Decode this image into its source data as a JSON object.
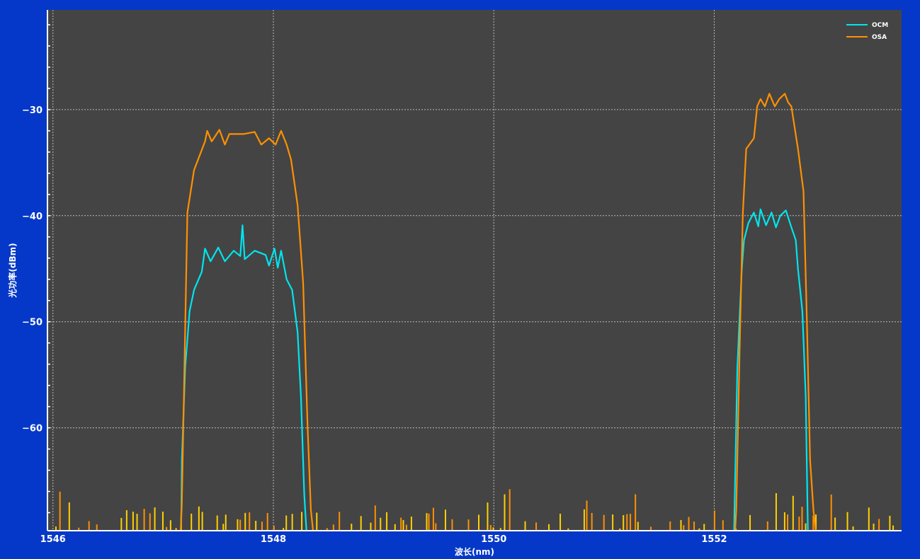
{
  "chart_data": {
    "type": "line",
    "title": "",
    "xlabel": "波长(nm)",
    "ylabel": "光功率(dBm)",
    "xlim": [
      1545.95,
      1553.7
    ],
    "ylim": [
      -69.7,
      -20.6
    ],
    "x_ticks": [
      1546,
      1548,
      1550,
      1552
    ],
    "x_tick_labels": [
      "1546",
      "1548",
      "1550",
      "1552"
    ],
    "y_ticks": [
      -30,
      -40,
      -50,
      -60
    ],
    "y_tick_labels": [
      "−30",
      "−40",
      "−50",
      "−60"
    ],
    "grid": true,
    "legend_position": "top-right",
    "colors": {
      "background": "#0538c8",
      "plot": "#444444",
      "OCM": "#00e5ee",
      "OSA": "#ff9000",
      "noise": "#ffd000"
    },
    "series": [
      {
        "name": "OCM",
        "points": [
          [
            1547.16,
            -70
          ],
          [
            1547.165,
            -67.7
          ],
          [
            1547.17,
            -63
          ],
          [
            1547.2,
            -54.3
          ],
          [
            1547.24,
            -49
          ],
          [
            1547.28,
            -47
          ],
          [
            1547.35,
            -45.3
          ],
          [
            1547.38,
            -43.1
          ],
          [
            1547.43,
            -44.3
          ],
          [
            1547.5,
            -43
          ],
          [
            1547.56,
            -44.3
          ],
          [
            1547.64,
            -43.3
          ],
          [
            1547.7,
            -43.8
          ],
          [
            1547.72,
            -40.9
          ],
          [
            1547.74,
            -44.1
          ],
          [
            1547.83,
            -43.3
          ],
          [
            1547.93,
            -43.7
          ],
          [
            1547.96,
            -44.7
          ],
          [
            1548.01,
            -43.1
          ],
          [
            1548.04,
            -44.9
          ],
          [
            1548.07,
            -43.3
          ],
          [
            1548.12,
            -46
          ],
          [
            1548.17,
            -47
          ],
          [
            1548.22,
            -51
          ],
          [
            1548.25,
            -57
          ],
          [
            1548.28,
            -66.3
          ],
          [
            1548.3,
            -70
          ]
        ]
      },
      {
        "name": "OSA",
        "points": [
          [
            1547.16,
            -70
          ],
          [
            1547.17,
            -67
          ],
          [
            1547.22,
            -39.7
          ],
          [
            1547.28,
            -35.7
          ],
          [
            1547.38,
            -33
          ],
          [
            1547.4,
            -32
          ],
          [
            1547.44,
            -33
          ],
          [
            1547.51,
            -31.9
          ],
          [
            1547.56,
            -33.3
          ],
          [
            1547.6,
            -32.3
          ],
          [
            1547.73,
            -32.3
          ],
          [
            1547.83,
            -32.1
          ],
          [
            1547.89,
            -33.3
          ],
          [
            1547.96,
            -32.7
          ],
          [
            1548.02,
            -33.3
          ],
          [
            1548.07,
            -32
          ],
          [
            1548.12,
            -33.3
          ],
          [
            1548.16,
            -34.7
          ],
          [
            1548.22,
            -39
          ],
          [
            1548.27,
            -46.3
          ],
          [
            1548.31,
            -59.7
          ],
          [
            1548.34,
            -67.7
          ],
          [
            1548.36,
            -70
          ]
        ]
      },
      {
        "name": "OCM",
        "points": [
          [
            1552.18,
            -70
          ],
          [
            1552.21,
            -54.3
          ],
          [
            1552.25,
            -45
          ],
          [
            1552.27,
            -42.3
          ],
          [
            1552.31,
            -40.7
          ],
          [
            1552.36,
            -39.7
          ],
          [
            1552.4,
            -41
          ],
          [
            1552.42,
            -39.4
          ],
          [
            1552.47,
            -40.9
          ],
          [
            1552.52,
            -39.7
          ],
          [
            1552.56,
            -41.1
          ],
          [
            1552.6,
            -40
          ],
          [
            1552.65,
            -39.5
          ],
          [
            1552.7,
            -41.1
          ],
          [
            1552.74,
            -42.3
          ],
          [
            1552.76,
            -45
          ],
          [
            1552.8,
            -49
          ],
          [
            1552.83,
            -57
          ],
          [
            1552.85,
            -70
          ]
        ]
      },
      {
        "name": "OSA",
        "points": [
          [
            1552.19,
            -70
          ],
          [
            1552.2,
            -67.7
          ],
          [
            1552.23,
            -53
          ],
          [
            1552.26,
            -39.7
          ],
          [
            1552.29,
            -33.7
          ],
          [
            1552.36,
            -32.7
          ],
          [
            1552.39,
            -29.7
          ],
          [
            1552.42,
            -29
          ],
          [
            1552.46,
            -29.7
          ],
          [
            1552.5,
            -28.5
          ],
          [
            1552.55,
            -29.7
          ],
          [
            1552.59,
            -29
          ],
          [
            1552.64,
            -28.5
          ],
          [
            1552.67,
            -29.3
          ],
          [
            1552.7,
            -29.7
          ],
          [
            1552.76,
            -33.7
          ],
          [
            1552.81,
            -37.7
          ],
          [
            1552.84,
            -49.7
          ],
          [
            1552.87,
            -63
          ],
          [
            1552.9,
            -67.7
          ],
          [
            1552.92,
            -70
          ]
        ]
      }
    ]
  }
}
